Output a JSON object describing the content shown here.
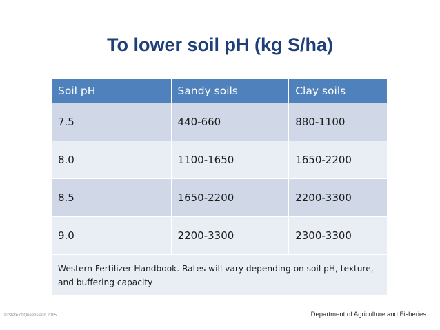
{
  "slide": {
    "title": "To lower soil pH (kg S/ha)"
  },
  "table": {
    "headers": [
      "Soil  pH",
      "Sandy soils",
      "Clay soils"
    ],
    "rows": [
      [
        "7.5",
        "440-660",
        "880-1100"
      ],
      [
        "8.0",
        "1100-1650",
        "1650-2200"
      ],
      [
        "8.5",
        "1650-2200",
        "2200-3300"
      ],
      [
        "9.0",
        "2200-3300",
        "2300-3300"
      ]
    ],
    "note": "Western Fertilizer Handbook.  Rates will vary depending on soil pH, texture, and buffering capacity"
  },
  "footer": {
    "copyright": "© State of Queensland 2015",
    "department": "Department of Agriculture and Fisheries"
  },
  "colors": {
    "title": "#1f3f78",
    "header_bg": "#4f81bd",
    "row_dark": "#d0d8e8",
    "row_light": "#e9edf4"
  }
}
